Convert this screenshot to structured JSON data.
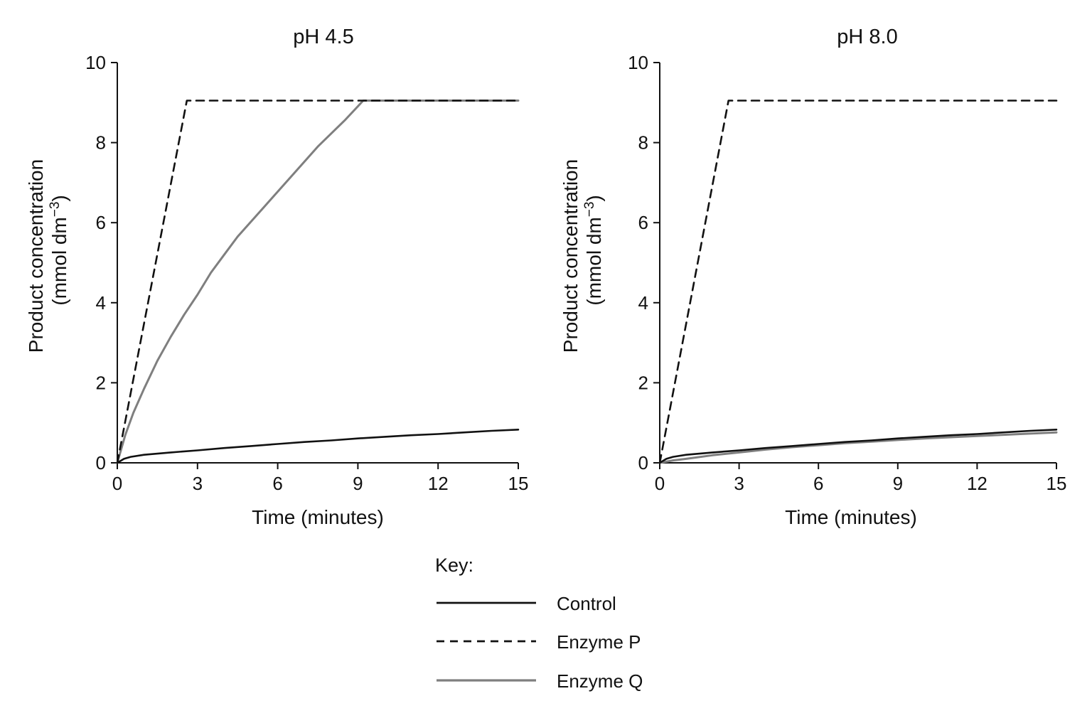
{
  "chart_data": [
    {
      "type": "line",
      "title": "pH 4.5",
      "xlabel": "Time (minutes)",
      "ylabel_line1": "Product concentration",
      "ylabel_line2_prefix": "(mmol dm",
      "ylabel_line2_sup": "−3",
      "ylabel_line2_suffix": ")",
      "xlim": [
        0,
        15
      ],
      "ylim": [
        0,
        10
      ],
      "xticks": [
        "0",
        "3",
        "6",
        "9",
        "12",
        "15"
      ],
      "yticks": [
        "0",
        "2",
        "4",
        "6",
        "8",
        "10"
      ],
      "grid": false,
      "series": [
        {
          "name": "Control",
          "color": "#111111",
          "dash": "solid",
          "x": [
            0,
            0.25,
            0.5,
            1,
            2,
            3,
            4,
            5,
            6,
            7,
            8,
            9,
            10,
            11,
            12,
            13,
            14,
            15
          ],
          "y": [
            0,
            0.1,
            0.15,
            0.2,
            0.26,
            0.31,
            0.37,
            0.42,
            0.47,
            0.52,
            0.56,
            0.61,
            0.65,
            0.69,
            0.72,
            0.76,
            0.8,
            0.83
          ]
        },
        {
          "name": "Enzyme P",
          "color": "#111111",
          "dash": "dashed",
          "x": [
            0,
            2.6,
            15
          ],
          "y": [
            0,
            9.05,
            9.05
          ]
        },
        {
          "name": "Enzyme Q",
          "color": "#7f7f7f",
          "dash": "solid",
          "x": [
            0,
            0.3,
            0.6,
            1,
            1.5,
            2,
            2.5,
            3,
            3.5,
            4,
            4.5,
            5.5,
            6.5,
            7.5,
            8.5,
            9.2,
            10,
            12,
            15
          ],
          "y": [
            0,
            0.7,
            1.25,
            1.85,
            2.55,
            3.15,
            3.7,
            4.2,
            4.75,
            5.2,
            5.65,
            6.4,
            7.15,
            7.9,
            8.55,
            9.05,
            9.05,
            9.05,
            9.05
          ]
        }
      ]
    },
    {
      "type": "line",
      "title": "pH 8.0",
      "xlabel": "Time (minutes)",
      "ylabel_line1": "Product concentration",
      "ylabel_line2_prefix": "(mmol dm",
      "ylabel_line2_sup": "−3",
      "ylabel_line2_suffix": ")",
      "xlim": [
        0,
        15
      ],
      "ylim": [
        0,
        10
      ],
      "xticks": [
        "0",
        "3",
        "6",
        "9",
        "12",
        "15"
      ],
      "yticks": [
        "0",
        "2",
        "4",
        "6",
        "8",
        "10"
      ],
      "grid": false,
      "series": [
        {
          "name": "Control",
          "color": "#111111",
          "dash": "solid",
          "x": [
            0,
            0.25,
            0.5,
            1,
            2,
            3,
            4,
            5,
            6,
            7,
            8,
            9,
            10,
            11,
            12,
            13,
            14,
            15
          ],
          "y": [
            0,
            0.1,
            0.15,
            0.2,
            0.26,
            0.31,
            0.37,
            0.42,
            0.47,
            0.52,
            0.56,
            0.61,
            0.65,
            0.69,
            0.72,
            0.76,
            0.8,
            0.83
          ]
        },
        {
          "name": "Enzyme P",
          "color": "#111111",
          "dash": "dashed",
          "x": [
            0,
            2.6,
            15
          ],
          "y": [
            0,
            9.05,
            9.05
          ]
        },
        {
          "name": "Enzyme Q",
          "color": "#7f7f7f",
          "dash": "solid",
          "x": [
            0,
            0.5,
            1,
            2,
            3,
            4,
            5,
            6,
            7,
            8,
            9,
            10,
            11,
            12,
            13,
            14,
            15
          ],
          "y": [
            0,
            0.06,
            0.1,
            0.19,
            0.26,
            0.33,
            0.39,
            0.44,
            0.49,
            0.53,
            0.57,
            0.61,
            0.64,
            0.67,
            0.7,
            0.73,
            0.76
          ]
        }
      ]
    }
  ],
  "legend": {
    "heading": "Key:",
    "placement": "bottom-center",
    "items": [
      {
        "label": "Control",
        "color": "#111111",
        "dash": "solid"
      },
      {
        "label": "Enzyme P",
        "color": "#111111",
        "dash": "dashed"
      },
      {
        "label": "Enzyme Q",
        "color": "#7f7f7f",
        "dash": "solid"
      }
    ]
  }
}
